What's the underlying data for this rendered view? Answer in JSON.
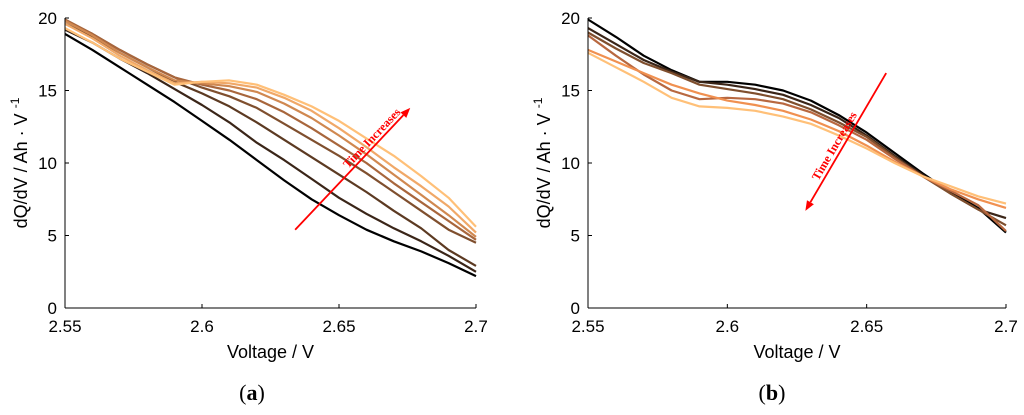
{
  "chart_data": [
    {
      "type": "line",
      "panel": "a",
      "xlabel": "Voltage / V",
      "ylabel": "dQ/dV / Ah · V",
      "ylabel_sup": "-1",
      "xlim": [
        2.55,
        2.7
      ],
      "ylim": [
        0,
        20
      ],
      "xticks": [
        2.55,
        2.6,
        2.65,
        2.7
      ],
      "xtick_labels": [
        "2.55",
        "2.6",
        "2.65",
        "2.7"
      ],
      "yticks": [
        0,
        5,
        10,
        15,
        20
      ],
      "ytick_labels": [
        "0",
        "5",
        "10",
        "15",
        "20"
      ],
      "grid": false,
      "annotation": {
        "text": "Time Increases",
        "color": "#ff0000",
        "arrow_from": [
          2.634,
          5.4
        ],
        "arrow_to": [
          2.676,
          13.8
        ]
      },
      "series": [
        {
          "color": "#000000",
          "x": [
            2.55,
            2.56,
            2.57,
            2.58,
            2.59,
            2.6,
            2.61,
            2.62,
            2.63,
            2.64,
            2.65,
            2.66,
            2.67,
            2.68,
            2.69,
            2.7
          ],
          "y": [
            18.9,
            17.8,
            16.6,
            15.4,
            14.2,
            12.9,
            11.6,
            10.2,
            8.8,
            7.5,
            6.4,
            5.4,
            4.6,
            3.9,
            3.1,
            2.2
          ]
        },
        {
          "color": "#3a2518",
          "x": [
            2.55,
            2.56,
            2.57,
            2.58,
            2.59,
            2.6,
            2.61,
            2.62,
            2.63,
            2.64,
            2.65,
            2.66,
            2.67,
            2.68,
            2.69,
            2.7
          ],
          "y": [
            19.2,
            18.3,
            17.2,
            16.2,
            15.1,
            14.0,
            12.8,
            11.4,
            10.2,
            8.9,
            7.6,
            6.5,
            5.5,
            4.6,
            3.6,
            2.5
          ]
        },
        {
          "color": "#5c3a22",
          "x": [
            2.55,
            2.56,
            2.57,
            2.58,
            2.59,
            2.6,
            2.61,
            2.62,
            2.63,
            2.64,
            2.65,
            2.66,
            2.67,
            2.68,
            2.69,
            2.7
          ],
          "y": [
            19.6,
            18.7,
            17.6,
            16.6,
            15.6,
            14.8,
            13.9,
            12.8,
            11.6,
            10.4,
            9.2,
            8.0,
            6.7,
            5.5,
            4.0,
            2.9
          ]
        },
        {
          "color": "#7f4f2e",
          "x": [
            2.55,
            2.56,
            2.57,
            2.58,
            2.59,
            2.6,
            2.61,
            2.62,
            2.63,
            2.64,
            2.65,
            2.66,
            2.67,
            2.68,
            2.69,
            2.7
          ],
          "y": [
            19.8,
            18.9,
            17.8,
            16.8,
            15.9,
            15.2,
            14.6,
            13.8,
            12.7,
            11.6,
            10.5,
            9.3,
            8.0,
            6.7,
            5.4,
            4.5
          ]
        },
        {
          "color": "#a8663c",
          "x": [
            2.55,
            2.56,
            2.57,
            2.58,
            2.59,
            2.6,
            2.61,
            2.62,
            2.63,
            2.64,
            2.65,
            2.66,
            2.67,
            2.68,
            2.69,
            2.7
          ],
          "y": [
            19.9,
            18.9,
            17.8,
            16.8,
            15.9,
            15.4,
            15.0,
            14.4,
            13.5,
            12.4,
            11.2,
            10.0,
            8.6,
            7.3,
            6.0,
            4.7
          ]
        },
        {
          "color": "#d08850",
          "x": [
            2.55,
            2.56,
            2.57,
            2.58,
            2.59,
            2.6,
            2.61,
            2.62,
            2.63,
            2.64,
            2.65,
            2.66,
            2.67,
            2.68,
            2.69,
            2.7
          ],
          "y": [
            19.8,
            18.8,
            17.6,
            16.6,
            15.7,
            15.5,
            15.3,
            14.9,
            14.1,
            13.1,
            11.9,
            10.6,
            9.2,
            7.8,
            6.4,
            4.9
          ]
        },
        {
          "color": "#f0a868",
          "x": [
            2.55,
            2.56,
            2.57,
            2.58,
            2.59,
            2.6,
            2.61,
            2.62,
            2.63,
            2.64,
            2.65,
            2.66,
            2.67,
            2.68,
            2.69,
            2.7
          ],
          "y": [
            19.6,
            18.6,
            17.4,
            16.4,
            15.5,
            15.6,
            15.5,
            15.2,
            14.5,
            13.6,
            12.4,
            11.1,
            9.7,
            8.4,
            7.0,
            5.2
          ]
        },
        {
          "color": "#ffc078",
          "x": [
            2.55,
            2.56,
            2.57,
            2.58,
            2.59,
            2.6,
            2.61,
            2.62,
            2.63,
            2.64,
            2.65,
            2.66,
            2.67,
            2.68,
            2.69,
            2.7
          ],
          "y": [
            19.3,
            18.3,
            17.2,
            16.3,
            15.4,
            15.6,
            15.7,
            15.4,
            14.7,
            13.9,
            12.9,
            11.7,
            10.5,
            9.1,
            7.6,
            5.6
          ]
        }
      ]
    },
    {
      "type": "line",
      "panel": "b",
      "xlabel": "Voltage / V",
      "ylabel": "dQ/dV / Ah · V",
      "ylabel_sup": "-1",
      "xlim": [
        2.55,
        2.7
      ],
      "ylim": [
        0,
        20
      ],
      "xticks": [
        2.55,
        2.6,
        2.65,
        2.7
      ],
      "xtick_labels": [
        "2.55",
        "2.6",
        "2.65",
        "2.7"
      ],
      "yticks": [
        0,
        5,
        10,
        15,
        20
      ],
      "ytick_labels": [
        "0",
        "5",
        "10",
        "15",
        "20"
      ],
      "grid": false,
      "annotation": {
        "text": "Time Increases",
        "color": "#ff0000",
        "arrow_from": [
          2.657,
          16.2
        ],
        "arrow_to": [
          2.628,
          6.7
        ]
      },
      "series": [
        {
          "color": "#000000",
          "x": [
            2.55,
            2.56,
            2.57,
            2.58,
            2.59,
            2.6,
            2.61,
            2.62,
            2.63,
            2.64,
            2.65,
            2.66,
            2.67,
            2.68,
            2.69,
            2.7
          ],
          "y": [
            19.9,
            18.7,
            17.4,
            16.4,
            15.6,
            15.6,
            15.4,
            15.0,
            14.3,
            13.3,
            12.1,
            10.7,
            9.3,
            8.0,
            6.9,
            5.2
          ]
        },
        {
          "color": "#3a2518",
          "x": [
            2.55,
            2.56,
            2.57,
            2.58,
            2.59,
            2.6,
            2.61,
            2.62,
            2.63,
            2.64,
            2.65,
            2.66,
            2.67,
            2.68,
            2.69,
            2.7
          ],
          "y": [
            19.3,
            18.2,
            17.1,
            16.3,
            15.6,
            15.4,
            15.1,
            14.7,
            14.0,
            13.1,
            11.9,
            10.5,
            9.2,
            7.9,
            6.8,
            6.2
          ]
        },
        {
          "color": "#7f4f2e",
          "x": [
            2.55,
            2.56,
            2.57,
            2.58,
            2.59,
            2.6,
            2.61,
            2.62,
            2.63,
            2.64,
            2.65,
            2.66,
            2.67,
            2.68,
            2.69,
            2.7
          ],
          "y": [
            19.0,
            17.9,
            16.9,
            16.2,
            15.4,
            15.1,
            14.8,
            14.4,
            13.7,
            12.8,
            11.8,
            10.4,
            9.1,
            7.9,
            6.8,
            5.7
          ]
        },
        {
          "color": "#b86840",
          "x": [
            2.55,
            2.56,
            2.57,
            2.58,
            2.59,
            2.6,
            2.61,
            2.62,
            2.63,
            2.64,
            2.65,
            2.66,
            2.67,
            2.68,
            2.69,
            2.7
          ],
          "y": [
            18.8,
            17.4,
            16.1,
            15.0,
            14.4,
            14.5,
            14.4,
            14.1,
            13.5,
            12.6,
            11.6,
            10.3,
            9.1,
            8.1,
            7.1,
            5.3
          ]
        },
        {
          "color": "#f09050",
          "x": [
            2.55,
            2.56,
            2.57,
            2.58,
            2.59,
            2.6,
            2.61,
            2.62,
            2.63,
            2.64,
            2.65,
            2.66,
            2.67,
            2.68,
            2.69,
            2.7
          ],
          "y": [
            17.8,
            17.0,
            16.2,
            15.4,
            14.8,
            14.3,
            14.0,
            13.6,
            13.0,
            12.2,
            11.2,
            10.1,
            9.1,
            8.2,
            7.5,
            6.9
          ]
        },
        {
          "color": "#ffc078",
          "x": [
            2.55,
            2.56,
            2.57,
            2.58,
            2.59,
            2.6,
            2.61,
            2.62,
            2.63,
            2.64,
            2.65,
            2.66,
            2.67,
            2.68,
            2.69,
            2.7
          ],
          "y": [
            17.6,
            16.6,
            15.6,
            14.5,
            13.9,
            13.8,
            13.6,
            13.2,
            12.7,
            11.9,
            11.0,
            10.0,
            9.1,
            8.4,
            7.7,
            7.2
          ]
        }
      ]
    }
  ],
  "panel_labels": [
    {
      "open": "(",
      "letter": "a",
      "close": ")"
    },
    {
      "open": "(",
      "letter": "b",
      "close": ")"
    }
  ]
}
